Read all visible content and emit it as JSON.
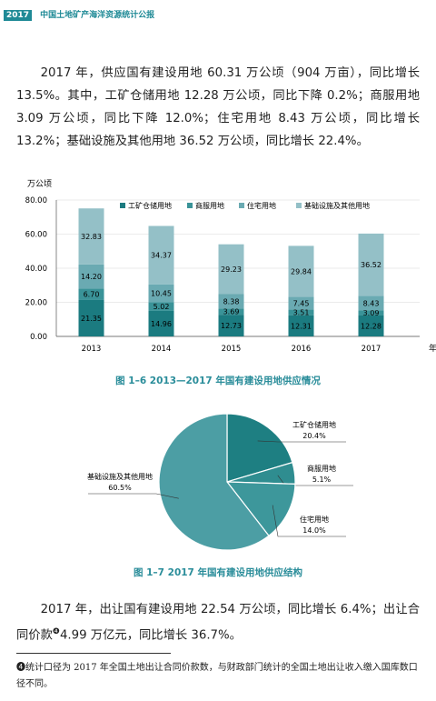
{
  "header": {
    "year": "2017",
    "title": "中国土地矿产海洋资源统计公报"
  },
  "paragraphs": [
    {
      "text": "2017 年，供应国有建设用地 60.31 万公顷（904 万亩），同比增长 13.5%。其中，工矿仓储用地 12.28 万公顷，同比下降 0.2%；商服用地 3.09 万公顷，同比下降 12.0%；住宅用地 8.43 万公顷，同比增长 13.2%；基础设施及其他用地 36.52 万公顷，同比增长 22.4%。"
    },
    {
      "text_before": "2017 年，出让国有建设用地 22.54 万公顷，同比增长 6.4%；出让合同价款",
      "marker": "❹",
      "text_after": "4.99 万亿元，同比增长 36.7%。"
    }
  ],
  "chart_data": [
    {
      "type": "bar",
      "stacked": true,
      "y_label": "万公顷",
      "x_unit": "年",
      "caption": "图 1–6  2013—2017 年国有建设用地供应情况",
      "categories": [
        "2013",
        "2014",
        "2015",
        "2016",
        "2017"
      ],
      "ylim": [
        0,
        80
      ],
      "yticks": [
        {
          "value": 0,
          "label": "0.00"
        },
        {
          "value": 20,
          "label": "20.00"
        },
        {
          "value": 40,
          "label": "40.00"
        },
        {
          "value": 60,
          "label": "60.00"
        },
        {
          "value": 80,
          "label": "80.00"
        }
      ],
      "series": [
        {
          "name": "工矿仓储用地",
          "color": "#1b7b80",
          "values": [
            21.35,
            14.96,
            12.73,
            12.31,
            12.28
          ],
          "value_labels": [
            "21.35",
            "14.96",
            "12.73",
            "12.31",
            "12.28"
          ]
        },
        {
          "name": "商服用地",
          "color": "#3a9398",
          "values": [
            6.7,
            5.02,
            3.69,
            3.51,
            3.09
          ],
          "value_labels": [
            "6.70",
            "5.02",
            "3.69",
            "3.51",
            "3.09"
          ]
        },
        {
          "name": "住宅用地",
          "color": "#6aaab2",
          "values": [
            14.2,
            10.45,
            8.38,
            7.45,
            8.43
          ],
          "value_labels": [
            "14.20",
            "10.45",
            "8.38",
            "7.45",
            "8.43"
          ]
        },
        {
          "name": "基础设施及其他用地",
          "color": "#94c0c7",
          "values": [
            32.83,
            34.37,
            29.23,
            29.84,
            36.52
          ],
          "value_labels": [
            "32.83",
            "34.37",
            "29.23",
            "29.84",
            "36.52"
          ]
        }
      ]
    },
    {
      "type": "pie",
      "caption": "图 1–7  2017 年国有建设用地供应结构",
      "categories": [
        "工矿仓储用地",
        "商服用地",
        "住宅用地",
        "基础设施及其他用地"
      ],
      "values": [
        20.4,
        5.1,
        14.0,
        60.5
      ],
      "value_labels": [
        "20.4%",
        "5.1%",
        "14.0%",
        "60.5%"
      ],
      "colors": [
        "#1e7f82",
        "#2f8d90",
        "#3d979b",
        "#4c9ea4"
      ]
    }
  ],
  "footnote": {
    "marker": "❹",
    "text": "统计口径为 2017 年全国土地出让合同价款数，与财政部门统计的全国土地出让收入缴入国库数口径不同。"
  }
}
